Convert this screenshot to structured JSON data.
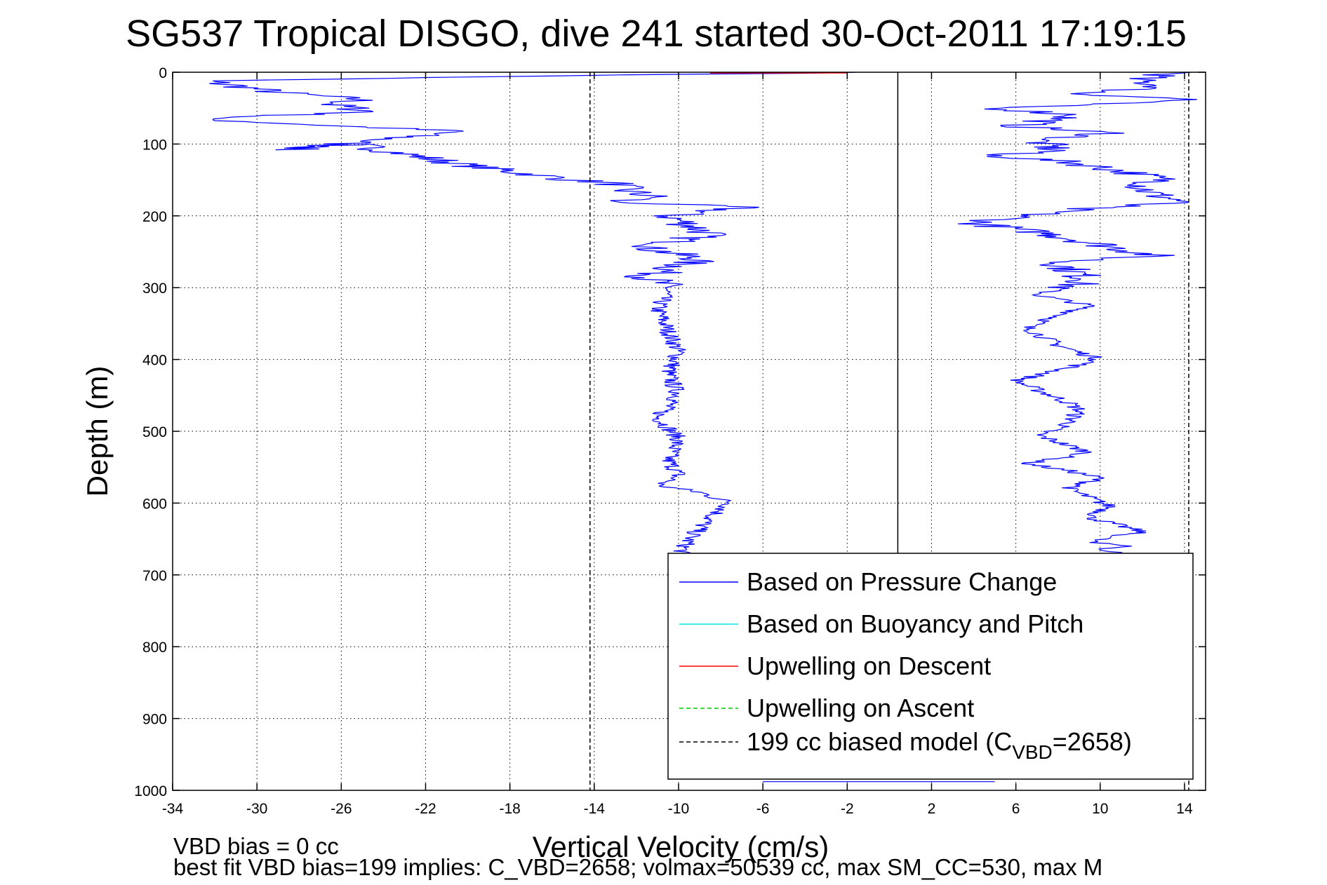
{
  "chart_data": {
    "type": "line",
    "title": "SG537 Tropical DISGO, dive 241 started 30-Oct-2011 17:19:15",
    "xlabel": "Vertical Velocity (cm/s)",
    "ylabel": "Depth (m)",
    "xlim": [
      -34,
      15
    ],
    "ylim": [
      0,
      1000
    ],
    "y_reversed": true,
    "grid": true,
    "x_ticks": [
      -34,
      -30,
      -26,
      -22,
      -18,
      -14,
      -10,
      -6,
      -2,
      2,
      6,
      10,
      14
    ],
    "y_ticks": [
      0,
      100,
      200,
      300,
      400,
      500,
      600,
      700,
      800,
      900,
      1000
    ],
    "legend_position": "bottom-right",
    "legend": {
      "entries": [
        {
          "label": "Based on Pressure Change",
          "color": "#0000ff",
          "style": "solid"
        },
        {
          "label": "Based on Buoyancy and Pitch",
          "color": "#00e5e5",
          "style": "solid"
        },
        {
          "label": "Upwelling on Descent",
          "color": "#ff0000",
          "style": "solid"
        },
        {
          "label": "Upwelling on Ascent",
          "color": "#00cc00",
          "style": "dashed"
        },
        {
          "label_main": "199 cc biased model (C",
          "label_sub": "VBD",
          "label_end": "=2658)",
          "color": "#000000",
          "style": "dashed"
        }
      ]
    },
    "series": [
      {
        "name": "Based on Pressure Change",
        "color": "#0000ff",
        "style": "solid",
        "segment": "descent",
        "x": [
          -0.5,
          -16.0,
          -32.5,
          -29.0,
          -25.0,
          -26.5,
          -24.5,
          -33.0,
          -26.0,
          -20.5,
          -28.5,
          -25.5,
          -20.0,
          -15.0,
          -13.0,
          -12.5,
          -11.0,
          -13.5,
          -7.0,
          -10.5,
          -8.5,
          -11.5,
          -9.0,
          -11.5,
          -10.5,
          -11.0,
          -10.5,
          -10.0,
          -10.5,
          -10.0,
          -11.0,
          -10.0,
          -10.5,
          -10.0,
          -10.5,
          -11.0,
          -10.0,
          -9.0,
          -8.5,
          -7.5,
          -8.5,
          -9.5,
          -10.0
        ],
        "y": [
          0,
          5,
          12,
          28,
          38,
          45,
          55,
          65,
          75,
          82,
          108,
          100,
          130,
          150,
          155,
          165,
          175,
          180,
          188,
          200,
          225,
          245,
          260,
          285,
          300,
          330,
          360,
          390,
          420,
          450,
          480,
          510,
          540,
          560,
          570,
          575,
          580,
          585,
          590,
          600,
          620,
          650,
          675
        ]
      },
      {
        "name": "Based on Pressure Change",
        "color": "#0000ff",
        "style": "solid",
        "segment": "ascent",
        "x": [
          14.0,
          11.5,
          13.0,
          9.0,
          14.5,
          5.0,
          9.0,
          6.0,
          10.5,
          7.0,
          8.0,
          4.5,
          8.5,
          11.5,
          13.0,
          12.0,
          12.5,
          14.0,
          9.0,
          4.0,
          7.5,
          12.5,
          8.0,
          9.5,
          7.0,
          9.5,
          6.5,
          8.0,
          10.0,
          6.0,
          8.5,
          9.0,
          8.5,
          7.0,
          9.5,
          6.5,
          8.5,
          10.0,
          8.5,
          10.5,
          9.5,
          12.0,
          10.0,
          9.5,
          11.5,
          10.0,
          11.0
        ],
        "y": [
          0,
          10,
          20,
          30,
          38,
          50,
          60,
          75,
          85,
          95,
          110,
          115,
          125,
          140,
          150,
          160,
          170,
          180,
          190,
          210,
          225,
          255,
          265,
          290,
          310,
          325,
          355,
          380,
          400,
          430,
          460,
          470,
          490,
          505,
          530,
          545,
          555,
          565,
          580,
          605,
          620,
          640,
          650,
          655,
          660,
          665,
          670
        ]
      },
      {
        "name": "Upwelling on Descent",
        "color": "#ff0000",
        "style": "solid",
        "x": [
          -8.5,
          -2.0
        ],
        "y": [
          1,
          1
        ]
      },
      {
        "name": "199 cc biased model (C_VBD=2658)",
        "color": "#000000",
        "style": "dashed",
        "x": [
          -14.2,
          -14.2
        ],
        "y": [
          0,
          1000
        ]
      },
      {
        "name": "199 cc biased model (C_VBD=2658)",
        "color": "#000000",
        "style": "dashed",
        "x": [
          14.2,
          14.2
        ],
        "y": [
          0,
          1000
        ]
      }
    ],
    "zero_line": {
      "x": 0.4,
      "ymin": 0,
      "ymax": 670,
      "color": "#000000"
    },
    "bottom_traces": {
      "color": "#0000ff",
      "x": [
        -6.0,
        5.0
      ],
      "y": [
        988,
        988
      ]
    },
    "notes": [
      "VBD bias = 0 cc",
      "best fit VBD bias=199 implies: C_VBD=2658; volmax=50539 cc, max SM_CC=530, max M"
    ]
  }
}
